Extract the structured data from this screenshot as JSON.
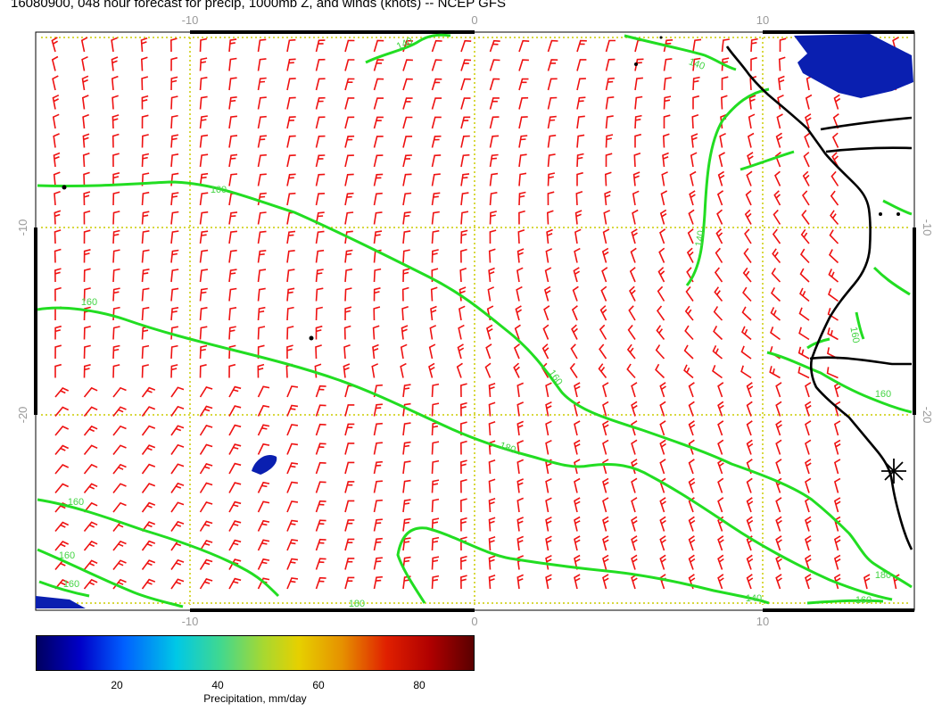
{
  "title": "16080900, 048 hour forecast for precip, 1000mb Z, and winds (knots) -- NCEP GFS",
  "map": {
    "x_ticks": [
      "-10",
      "0",
      "10"
    ],
    "y_ticks": [
      "-10",
      "-20"
    ],
    "contour_labels": [
      "140",
      "140",
      "160",
      "160",
      "160",
      "180",
      "160",
      "160",
      "160",
      "140",
      "160",
      "160",
      "140",
      "160",
      "180",
      "180"
    ],
    "colors": {
      "contour": "#22dd22",
      "wind_barb": "#ee1111",
      "coastline": "#000000",
      "grid": "#cccc00",
      "precip": "#001a9e"
    }
  },
  "colorbar": {
    "ticks": [
      "20",
      "40",
      "60",
      "80"
    ],
    "label": "Precipitation, mm/day"
  }
}
